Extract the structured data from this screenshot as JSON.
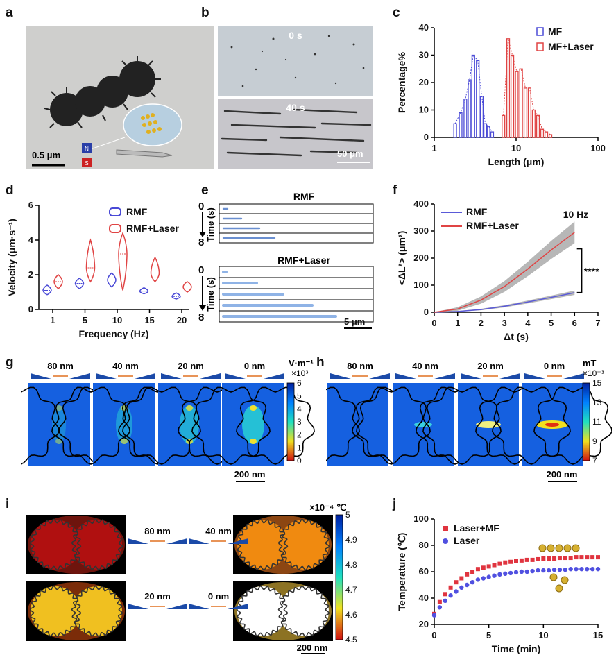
{
  "panels": {
    "a": {
      "letter": "a",
      "scale_label": "0.5 μm",
      "magnet_n": "N",
      "magnet_s": "S"
    },
    "b": {
      "letter": "b",
      "time_top": "0 s",
      "time_bottom": "40 s",
      "scale_label": "50 μm"
    },
    "e": {
      "letter": "e",
      "group1_title": "RMF",
      "group2_title": "RMF+Laser",
      "time_label": "Time (s)",
      "t_start": "0",
      "t_end": "8",
      "scale_label": "5 μm"
    },
    "g": {
      "letter": "g",
      "gaps": [
        "80 nm",
        "40 nm",
        "20 nm",
        "0 nm"
      ],
      "unit": "V·m⁻¹",
      "multiplier": "×10³",
      "colorbar_ticks": [
        "6",
        "5",
        "4",
        "3",
        "2",
        "1",
        "0"
      ],
      "scale_label": "200 nm"
    },
    "h": {
      "letter": "h",
      "gaps": [
        "80 nm",
        "40 nm",
        "20 nm",
        "0 nm"
      ],
      "unit": "mT",
      "multiplier": "×10⁻³",
      "colorbar_ticks": [
        "15",
        "13",
        "11",
        "9",
        "7"
      ],
      "scale_label": "200 nm"
    },
    "i": {
      "letter": "i",
      "gaps": [
        "80 nm",
        "40 nm",
        "20 nm",
        "0 nm"
      ],
      "unit": "×10⁻⁴ ℃",
      "colorbar_ticks": [
        "5",
        "4.9",
        "4.8",
        "4.7",
        "4.6",
        "4.5"
      ],
      "scale_label": "200 nm"
    }
  },
  "chart_data": [
    {
      "panel": "c",
      "type": "bar",
      "xlabel": "Length (μm)",
      "ylabel": "Percentage%",
      "xscale": "log",
      "xlim": [
        1,
        100
      ],
      "ylim": [
        0,
        40
      ],
      "xticks": [
        "1",
        "10",
        "100"
      ],
      "yticks": [
        "0",
        "10",
        "20",
        "30",
        "40"
      ],
      "legend_position": "top-right",
      "series": [
        {
          "name": "MF",
          "color": "#4a4ad6",
          "x": [
            1.8,
            2.1,
            2.4,
            2.7,
            3.0,
            3.4,
            3.8,
            4.2,
            4.6,
            5.1
          ],
          "values": [
            5,
            9,
            14,
            21,
            30,
            28,
            15,
            5,
            4,
            2
          ]
        },
        {
          "name": "MF+Laser",
          "color": "#e04444",
          "x": [
            7.0,
            8.0,
            9.0,
            10.2,
            11.5,
            13.0,
            14.6,
            16.4,
            18.5,
            20.8,
            23.4,
            26.3
          ],
          "values": [
            8,
            36,
            30,
            24,
            25,
            18,
            18,
            10,
            8,
            3,
            2,
            1
          ]
        }
      ]
    },
    {
      "panel": "d",
      "type": "violin",
      "xlabel": "Frequency (Hz)",
      "ylabel": "Velocity (μm·s⁻¹)",
      "ylim": [
        0,
        6
      ],
      "yticks": [
        "0",
        "2",
        "4",
        "6"
      ],
      "categories": [
        "1",
        "5",
        "10",
        "15",
        "20"
      ],
      "legend_position": "top-right",
      "series": [
        {
          "name": "RMF",
          "color": "#4a4ad6",
          "median": [
            1.1,
            1.5,
            1.7,
            1.05,
            0.75
          ],
          "min": [
            0.85,
            1.2,
            1.3,
            0.9,
            0.6
          ],
          "max": [
            1.4,
            1.8,
            2.1,
            1.25,
            0.95
          ]
        },
        {
          "name": "RMF+Laser",
          "color": "#e04444",
          "median": [
            1.6,
            2.4,
            3.2,
            2.1,
            1.3
          ],
          "min": [
            1.2,
            1.6,
            1.1,
            1.6,
            1.0
          ],
          "max": [
            2.0,
            4.0,
            4.4,
            3.0,
            1.6
          ]
        }
      ]
    },
    {
      "panel": "f",
      "type": "line",
      "xlabel": "Δt (s)",
      "ylabel": "<ΔL²> (μm²)",
      "xlim": [
        0,
        7
      ],
      "ylim": [
        0,
        400
      ],
      "xticks": [
        "0",
        "1",
        "2",
        "3",
        "4",
        "5",
        "6",
        "7"
      ],
      "yticks": [
        "0",
        "100",
        "200",
        "300",
        "400"
      ],
      "annotation": "10 Hz",
      "significance": "****",
      "legend_position": "top-left",
      "series": [
        {
          "name": "RMF",
          "color": "#5a5ad8",
          "x": [
            0,
            1,
            2,
            3,
            4,
            5,
            6
          ],
          "values": [
            0,
            3,
            10,
            22,
            38,
            55,
            72
          ],
          "band": 8
        },
        {
          "name": "RMF+Laser",
          "color": "#e04444",
          "x": [
            0,
            1,
            2,
            3,
            4,
            5,
            6
          ],
          "values": [
            0,
            12,
            45,
            95,
            160,
            230,
            295
          ],
          "band": 40
        }
      ]
    },
    {
      "panel": "j",
      "type": "scatter",
      "xlabel": "Time (min)",
      "ylabel": "Temperature (℃)",
      "xlim": [
        0,
        15
      ],
      "ylim": [
        20,
        100
      ],
      "xticks": [
        "0",
        "5",
        "10",
        "15"
      ],
      "yticks": [
        "20",
        "40",
        "60",
        "80",
        "100"
      ],
      "legend_position": "top-left",
      "series": [
        {
          "name": "Laser+MF",
          "color": "#e0343f",
          "marker": "square",
          "x": [
            0,
            0.5,
            1,
            1.5,
            2,
            2.5,
            3,
            3.5,
            4,
            4.5,
            5,
            5.5,
            6,
            6.5,
            7,
            7.5,
            8,
            8.5,
            9,
            9.5,
            10,
            10.5,
            11,
            11.5,
            12,
            12.5,
            13,
            13.5,
            14,
            14.5,
            15
          ],
          "values": [
            28,
            37,
            43,
            48,
            52,
            55,
            58,
            60,
            62,
            63,
            64,
            65,
            66,
            67,
            67.5,
            68,
            68.5,
            69,
            69,
            69.5,
            70,
            70,
            70,
            70.5,
            70.5,
            70.5,
            71,
            71,
            71,
            71,
            71
          ]
        },
        {
          "name": "Laser",
          "color": "#5050e0",
          "marker": "circle",
          "x": [
            0,
            0.5,
            1,
            1.5,
            2,
            2.5,
            3,
            3.5,
            4,
            4.5,
            5,
            5.5,
            6,
            6.5,
            7,
            7.5,
            8,
            8.5,
            9,
            9.5,
            10,
            10.5,
            11,
            11.5,
            12,
            12.5,
            13,
            13.5,
            14,
            14.5,
            15
          ],
          "values": [
            27,
            33,
            38,
            42,
            45,
            48,
            50,
            52,
            54,
            55,
            56,
            57,
            58,
            58.5,
            59,
            59.5,
            60,
            60,
            60.5,
            61,
            61,
            61,
            61.5,
            61.5,
            61.5,
            62,
            62,
            62,
            62,
            62,
            62
          ]
        }
      ]
    }
  ]
}
